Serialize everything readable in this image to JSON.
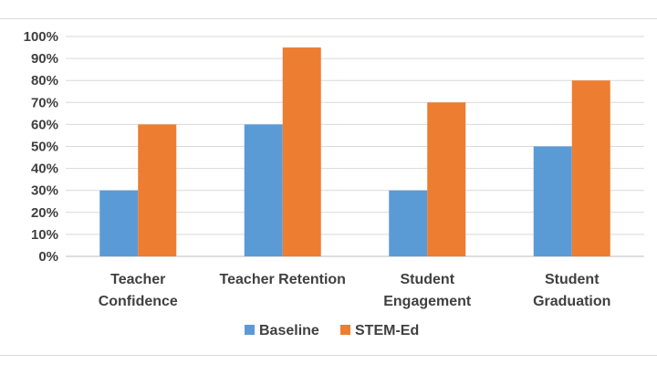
{
  "chart_data": {
    "type": "bar",
    "categories": [
      [
        "Teacher",
        "Confidence"
      ],
      [
        "Teacher Retention"
      ],
      [
        "Student",
        "Engagement"
      ],
      [
        "Student",
        "Graduation"
      ]
    ],
    "series": [
      {
        "name": "Baseline",
        "values": [
          30,
          60,
          30,
          50
        ],
        "color": "#5b9bd5"
      },
      {
        "name": "STEM-Ed",
        "values": [
          60,
          95,
          70,
          80
        ],
        "color": "#ed7d31"
      }
    ],
    "y_ticks": [
      "0%",
      "10%",
      "20%",
      "30%",
      "40%",
      "50%",
      "60%",
      "70%",
      "80%",
      "90%",
      "100%"
    ],
    "ylim": [
      0,
      100
    ],
    "grid": true,
    "legend_position": "bottom",
    "title": "",
    "xlabel": "",
    "ylabel": ""
  }
}
